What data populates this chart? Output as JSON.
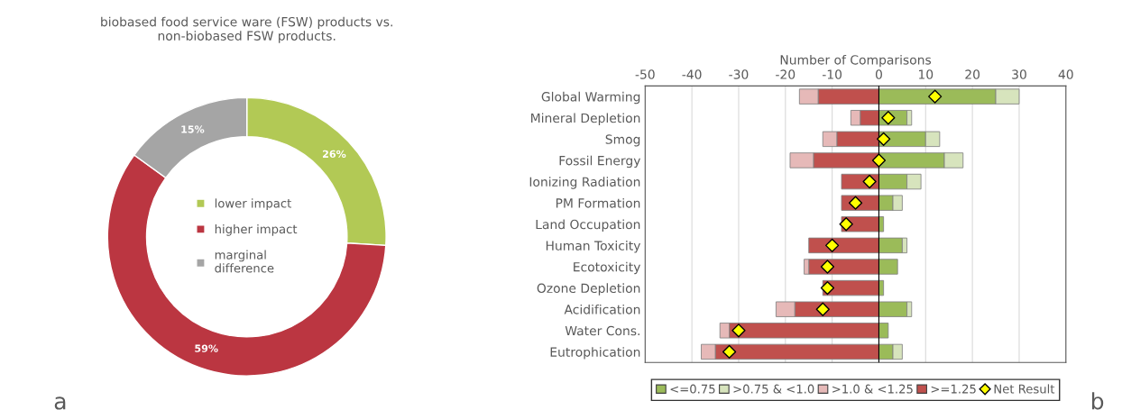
{
  "chart_data": [
    {
      "type": "donut",
      "title": "biobased food service ware (FSW) products vs.\nnon-biobased FSW products.",
      "categories": [
        "lower impact",
        "higher impact",
        "marginal\ndifference"
      ],
      "values": [
        26,
        59,
        15
      ],
      "colors": [
        "#b2c955",
        "#bb3641",
        "#a5a5a5"
      ],
      "value_labels": [
        "26%",
        "59%",
        "15%"
      ],
      "legend": "center",
      "annotations": [
        "a"
      ]
    },
    {
      "type": "bar",
      "orientation": "horizontal",
      "stacked": true,
      "xlabel": "Number of Comparisons",
      "categories": [
        "Global Warming",
        "Mineral Depletion",
        "Smog",
        "Fossil Energy",
        "Ionizing Radiation",
        "PM Formation",
        "Land Occupation",
        "Human Toxicity",
        "Ecotoxicity",
        "Ozone Depletion",
        "Acidification",
        "Water Cons.",
        "Eutrophication"
      ],
      "series": [
        {
          "name": "<=0.75",
          "color": "#9bbb59",
          "values": [
            25,
            6,
            10,
            14,
            6,
            3,
            1,
            5,
            4,
            1,
            6,
            2,
            3
          ]
        },
        {
          "name": ">0.75 & <1.0",
          "color": "#d7e4bd",
          "values": [
            5,
            1,
            3,
            4,
            3,
            2,
            null,
            1,
            null,
            null,
            1,
            null,
            2
          ]
        },
        {
          "name": ">=1.25",
          "color": "#c0504d",
          "values": [
            -13,
            -4,
            -9,
            -14,
            -8,
            -8,
            -8,
            -15,
            -15,
            -12,
            -18,
            -32,
            -35
          ]
        },
        {
          "name": ">1.0 & <1.25",
          "color": "#e6b9b8",
          "values": [
            -4,
            -2,
            -3,
            -5,
            null,
            null,
            null,
            null,
            -1,
            null,
            -4,
            -2,
            -3
          ]
        },
        {
          "name": "Net Result",
          "type": "scatter",
          "marker": "diamond",
          "color": "#ffff00",
          "values": [
            12,
            2,
            1,
            0,
            -2,
            -5,
            -7,
            -10,
            -11,
            -11,
            -12,
            -30,
            -32
          ]
        }
      ],
      "xlim": [
        -50,
        40
      ],
      "xticks": [
        -50,
        -40,
        -30,
        -20,
        -10,
        0,
        10,
        20,
        30,
        40
      ],
      "grid": "x",
      "legend": "bottom",
      "annotations": [
        "b"
      ]
    }
  ]
}
